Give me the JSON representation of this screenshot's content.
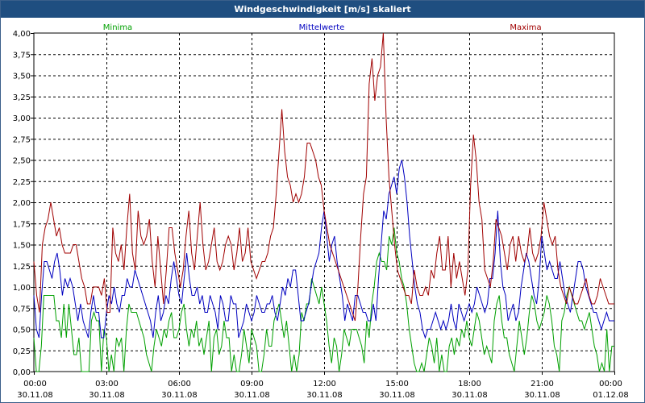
{
  "window": {
    "title": "Windgeschwindigkeit [m/s] skaliert"
  },
  "chart_data": {
    "type": "line",
    "title": "Windgeschwindigkeit [m/s] skaliert",
    "ylim": [
      0,
      4
    ],
    "yticks": [
      "0,00",
      "0,25",
      "0,50",
      "0,75",
      "1,00",
      "1,25",
      "1,50",
      "1,75",
      "2,00",
      "2,25",
      "2,50",
      "2,75",
      "3,00",
      "3,25",
      "3,50",
      "3,75",
      "4,00"
    ],
    "xticks": [
      {
        "time": "00:00",
        "date": "30.11.08"
      },
      {
        "time": "03:00",
        "date": "30.11.08"
      },
      {
        "time": "06:00",
        "date": "30.11.08"
      },
      {
        "time": "09:00",
        "date": "30.11.08"
      },
      {
        "time": "12:00",
        "date": "30.11.08"
      },
      {
        "time": "15:00",
        "date": "30.11.08"
      },
      {
        "time": "18:00",
        "date": "30.11.08"
      },
      {
        "time": "21:00",
        "date": "30.11.08"
      },
      {
        "time": "00:00",
        "date": "01.12.08"
      }
    ],
    "x_range_hours": [
      0,
      24
    ],
    "x_step_minutes": 10,
    "grid": true,
    "series": [
      {
        "name": "Minima",
        "color": "#00a000",
        "values": [
          0.4,
          0.0,
          0.0,
          0.3,
          0.9,
          0.9,
          0.9,
          0.9,
          0.9,
          0.6,
          0.6,
          0.4,
          0.8,
          0.4,
          0.8,
          0.5,
          0.2,
          0.2,
          0.4,
          0.0,
          0.0,
          0.0,
          0.0,
          0.6,
          0.7,
          0.6,
          0.6,
          0.0,
          0.5,
          0.4,
          0.0,
          0.2,
          0.0,
          0.4,
          0.3,
          0.4,
          0.0,
          0.5,
          0.8,
          0.7,
          0.7,
          0.7,
          0.6,
          0.5,
          0.4,
          0.2,
          0.1,
          0.0,
          0.3,
          0.5,
          0.4,
          0.3,
          0.5,
          0.4,
          0.6,
          0.7,
          0.4,
          0.4,
          0.5,
          0.7,
          0.8,
          0.5,
          0.3,
          0.5,
          0.4,
          0.6,
          0.3,
          0.4,
          0.2,
          0.4,
          0.6,
          0.0,
          0.4,
          0.5,
          0.2,
          0.3,
          0.6,
          0.4,
          0.4,
          0.0,
          0.2,
          0.0,
          0.0,
          0.2,
          0.5,
          0.3,
          0.1,
          0.5,
          0.4,
          0.3,
          0.0,
          0.0,
          0.2,
          0.5,
          0.3,
          0.3,
          0.6,
          0.7,
          0.8,
          0.6,
          0.4,
          0.6,
          0.3,
          0.0,
          0.2,
          0.0,
          0.2,
          0.7,
          0.6,
          0.8,
          0.8,
          1.1,
          1.0,
          0.9,
          0.8,
          1.0,
          0.8,
          0.6,
          0.3,
          0.1,
          0.4,
          0.3,
          0.0,
          0.2,
          0.5,
          0.4,
          0.3,
          0.5,
          0.5,
          0.5,
          0.4,
          0.3,
          0.1,
          0.6,
          0.4,
          0.8,
          1.0,
          1.3,
          1.4,
          1.3,
          1.3,
          1.2,
          1.6,
          1.5,
          1.7,
          1.4,
          1.3,
          1.1,
          1.0,
          0.8,
          0.5,
          0.3,
          0.1,
          0.0,
          0.0,
          0.1,
          0.0,
          0.2,
          0.4,
          0.3,
          0.1,
          0.4,
          0.0,
          0.2,
          0.0,
          0.0,
          0.3,
          0.4,
          0.2,
          0.4,
          0.3,
          0.5,
          0.4,
          0.6,
          0.4,
          0.3,
          0.5,
          0.7,
          0.6,
          0.4,
          0.2,
          0.3,
          0.2,
          0.1,
          0.6,
          0.8,
          0.9,
          0.6,
          0.4,
          0.4,
          0.2,
          0.1,
          0.0,
          0.3,
          0.6,
          0.4,
          0.2,
          0.4,
          0.7,
          0.9,
          0.8,
          0.6,
          0.5,
          0.6,
          0.7,
          0.9,
          0.8,
          0.6,
          0.3,
          0.2,
          0.0,
          0.6,
          0.7,
          0.9,
          1.0,
          0.9,
          0.8,
          0.7,
          0.6,
          0.6,
          0.5,
          0.6,
          0.7,
          0.5,
          0.3,
          0.2,
          0.0,
          0.1,
          0.0,
          0.5,
          0.0,
          0.3,
          0.3
        ],
        "legend_position": "top-left"
      },
      {
        "name": "Mittelwerte",
        "color": "#0000c0",
        "values": [
          0.9,
          0.5,
          0.4,
          0.9,
          1.3,
          1.3,
          1.2,
          1.1,
          1.3,
          1.4,
          1.2,
          0.9,
          1.1,
          1.0,
          1.1,
          1.0,
          0.8,
          0.6,
          0.8,
          0.6,
          0.5,
          0.4,
          0.7,
          0.9,
          0.7,
          0.7,
          0.4,
          0.4,
          0.7,
          0.9,
          0.8,
          1.0,
          0.8,
          0.7,
          0.9,
          0.9,
          1.1,
          1.0,
          1.0,
          1.2,
          1.1,
          1.0,
          0.9,
          0.8,
          0.7,
          0.6,
          0.4,
          0.7,
          0.9,
          0.6,
          0.7,
          0.9,
          0.8,
          1.1,
          1.3,
          1.1,
          0.9,
          0.8,
          1.1,
          1.4,
          1.1,
          0.9,
          0.9,
          1.0,
          0.8,
          0.9,
          0.7,
          0.7,
          0.9,
          0.8,
          0.7,
          0.5,
          0.9,
          0.8,
          0.6,
          0.6,
          0.9,
          0.8,
          0.8,
          0.4,
          0.5,
          0.6,
          0.8,
          0.7,
          0.6,
          0.7,
          0.9,
          0.8,
          0.7,
          0.7,
          0.8,
          0.8,
          0.9,
          0.7,
          0.6,
          0.8,
          1.0,
          0.9,
          1.1,
          1.0,
          1.2,
          1.2,
          0.9,
          0.6,
          0.6,
          0.7,
          0.8,
          1.0,
          1.2,
          1.3,
          1.4,
          1.7,
          1.9,
          1.6,
          1.3,
          1.5,
          1.6,
          1.3,
          1.1,
          0.9,
          0.6,
          0.8,
          0.7,
          0.6,
          0.9,
          0.9,
          0.8,
          0.7,
          0.7,
          0.6,
          0.6,
          0.8,
          0.6,
          1.1,
          1.5,
          1.9,
          1.8,
          2.1,
          2.2,
          2.3,
          2.1,
          2.4,
          2.5,
          2.3,
          2.0,
          1.6,
          1.3,
          1.0,
          0.8,
          0.7,
          0.5,
          0.4,
          0.5,
          0.5,
          0.6,
          0.7,
          0.6,
          0.5,
          0.6,
          0.5,
          0.6,
          0.8,
          0.6,
          0.5,
          0.8,
          0.7,
          0.6,
          0.7,
          0.8,
          0.7,
          0.8,
          1.0,
          0.9,
          0.8,
          0.7,
          0.8,
          1.1,
          1.1,
          1.4,
          1.9,
          1.3,
          1.0,
          0.9,
          0.6,
          0.7,
          0.8,
          0.6,
          0.7,
          1.0,
          1.2,
          1.4,
          1.3,
          1.1,
          0.9,
          0.8,
          1.1,
          1.6,
          1.4,
          1.2,
          1.3,
          1.2,
          1.1,
          1.1,
          1.3,
          1.1,
          0.9,
          0.8,
          0.7,
          0.9,
          1.1,
          1.3,
          1.3,
          1.2,
          1.0,
          0.9,
          0.8,
          0.7,
          0.7,
          0.6,
          0.5,
          0.6,
          0.7,
          0.6,
          0.6,
          0.6
        ]
      },
      {
        "name": "Maxima",
        "color": "#a00000",
        "values": [
          1.3,
          0.9,
          0.7,
          1.5,
          1.7,
          1.8,
          2.0,
          1.8,
          1.6,
          1.7,
          1.5,
          1.4,
          1.4,
          1.4,
          1.5,
          1.5,
          1.3,
          1.1,
          1.0,
          0.8,
          0.8,
          1.0,
          1.0,
          1.0,
          0.9,
          1.1,
          0.7,
          0.7,
          1.7,
          1.4,
          1.3,
          1.5,
          1.2,
          1.7,
          2.1,
          1.4,
          1.2,
          1.9,
          1.6,
          1.5,
          1.6,
          1.8,
          1.3,
          1.0,
          1.6,
          1.2,
          0.8,
          1.2,
          1.7,
          1.7,
          1.4,
          1.2,
          1.0,
          1.2,
          1.6,
          1.9,
          1.4,
          1.2,
          1.6,
          2.0,
          1.5,
          1.2,
          1.3,
          1.5,
          1.7,
          1.3,
          1.2,
          1.3,
          1.5,
          1.6,
          1.5,
          1.2,
          1.4,
          1.7,
          1.3,
          1.4,
          1.7,
          1.3,
          1.2,
          1.1,
          1.2,
          1.3,
          1.3,
          1.4,
          1.6,
          1.7,
          2.1,
          2.6,
          3.1,
          2.6,
          2.3,
          2.2,
          2.0,
          2.1,
          2.0,
          2.1,
          2.3,
          2.7,
          2.7,
          2.6,
          2.5,
          2.3,
          2.2,
          1.9,
          1.7,
          1.5,
          1.4,
          1.3,
          1.2,
          1.1,
          1.0,
          0.9,
          0.8,
          0.7,
          0.6,
          1.0,
          1.6,
          2.1,
          2.3,
          3.4,
          3.7,
          3.2,
          3.5,
          3.6,
          4.0,
          3.0,
          2.3,
          1.9,
          1.5,
          1.2,
          1.1,
          1.0,
          0.9,
          0.9,
          0.8,
          1.2,
          1.0,
          0.9,
          0.9,
          1.0,
          0.9,
          1.2,
          1.1,
          1.4,
          1.6,
          1.2,
          1.2,
          1.6,
          1.0,
          1.4,
          1.1,
          1.3,
          1.1,
          0.9,
          1.2,
          2.2,
          2.8,
          2.5,
          2.0,
          1.8,
          1.2,
          1.1,
          1.0,
          1.3,
          1.8,
          1.7,
          1.6,
          1.4,
          1.2,
          1.5,
          1.6,
          1.3,
          1.6,
          1.4,
          1.3,
          1.4,
          1.7,
          1.4,
          1.3,
          1.4,
          1.6,
          2.0,
          1.8,
          1.6,
          1.5,
          1.6,
          1.2,
          1.0,
          0.9,
          0.8,
          1.0,
          0.9,
          0.8,
          0.8,
          0.9,
          1.0,
          1.1,
          0.9,
          0.8,
          0.8,
          0.9,
          1.1,
          1.0,
          0.9,
          0.8,
          0.8,
          0.8
        ]
      }
    ]
  }
}
